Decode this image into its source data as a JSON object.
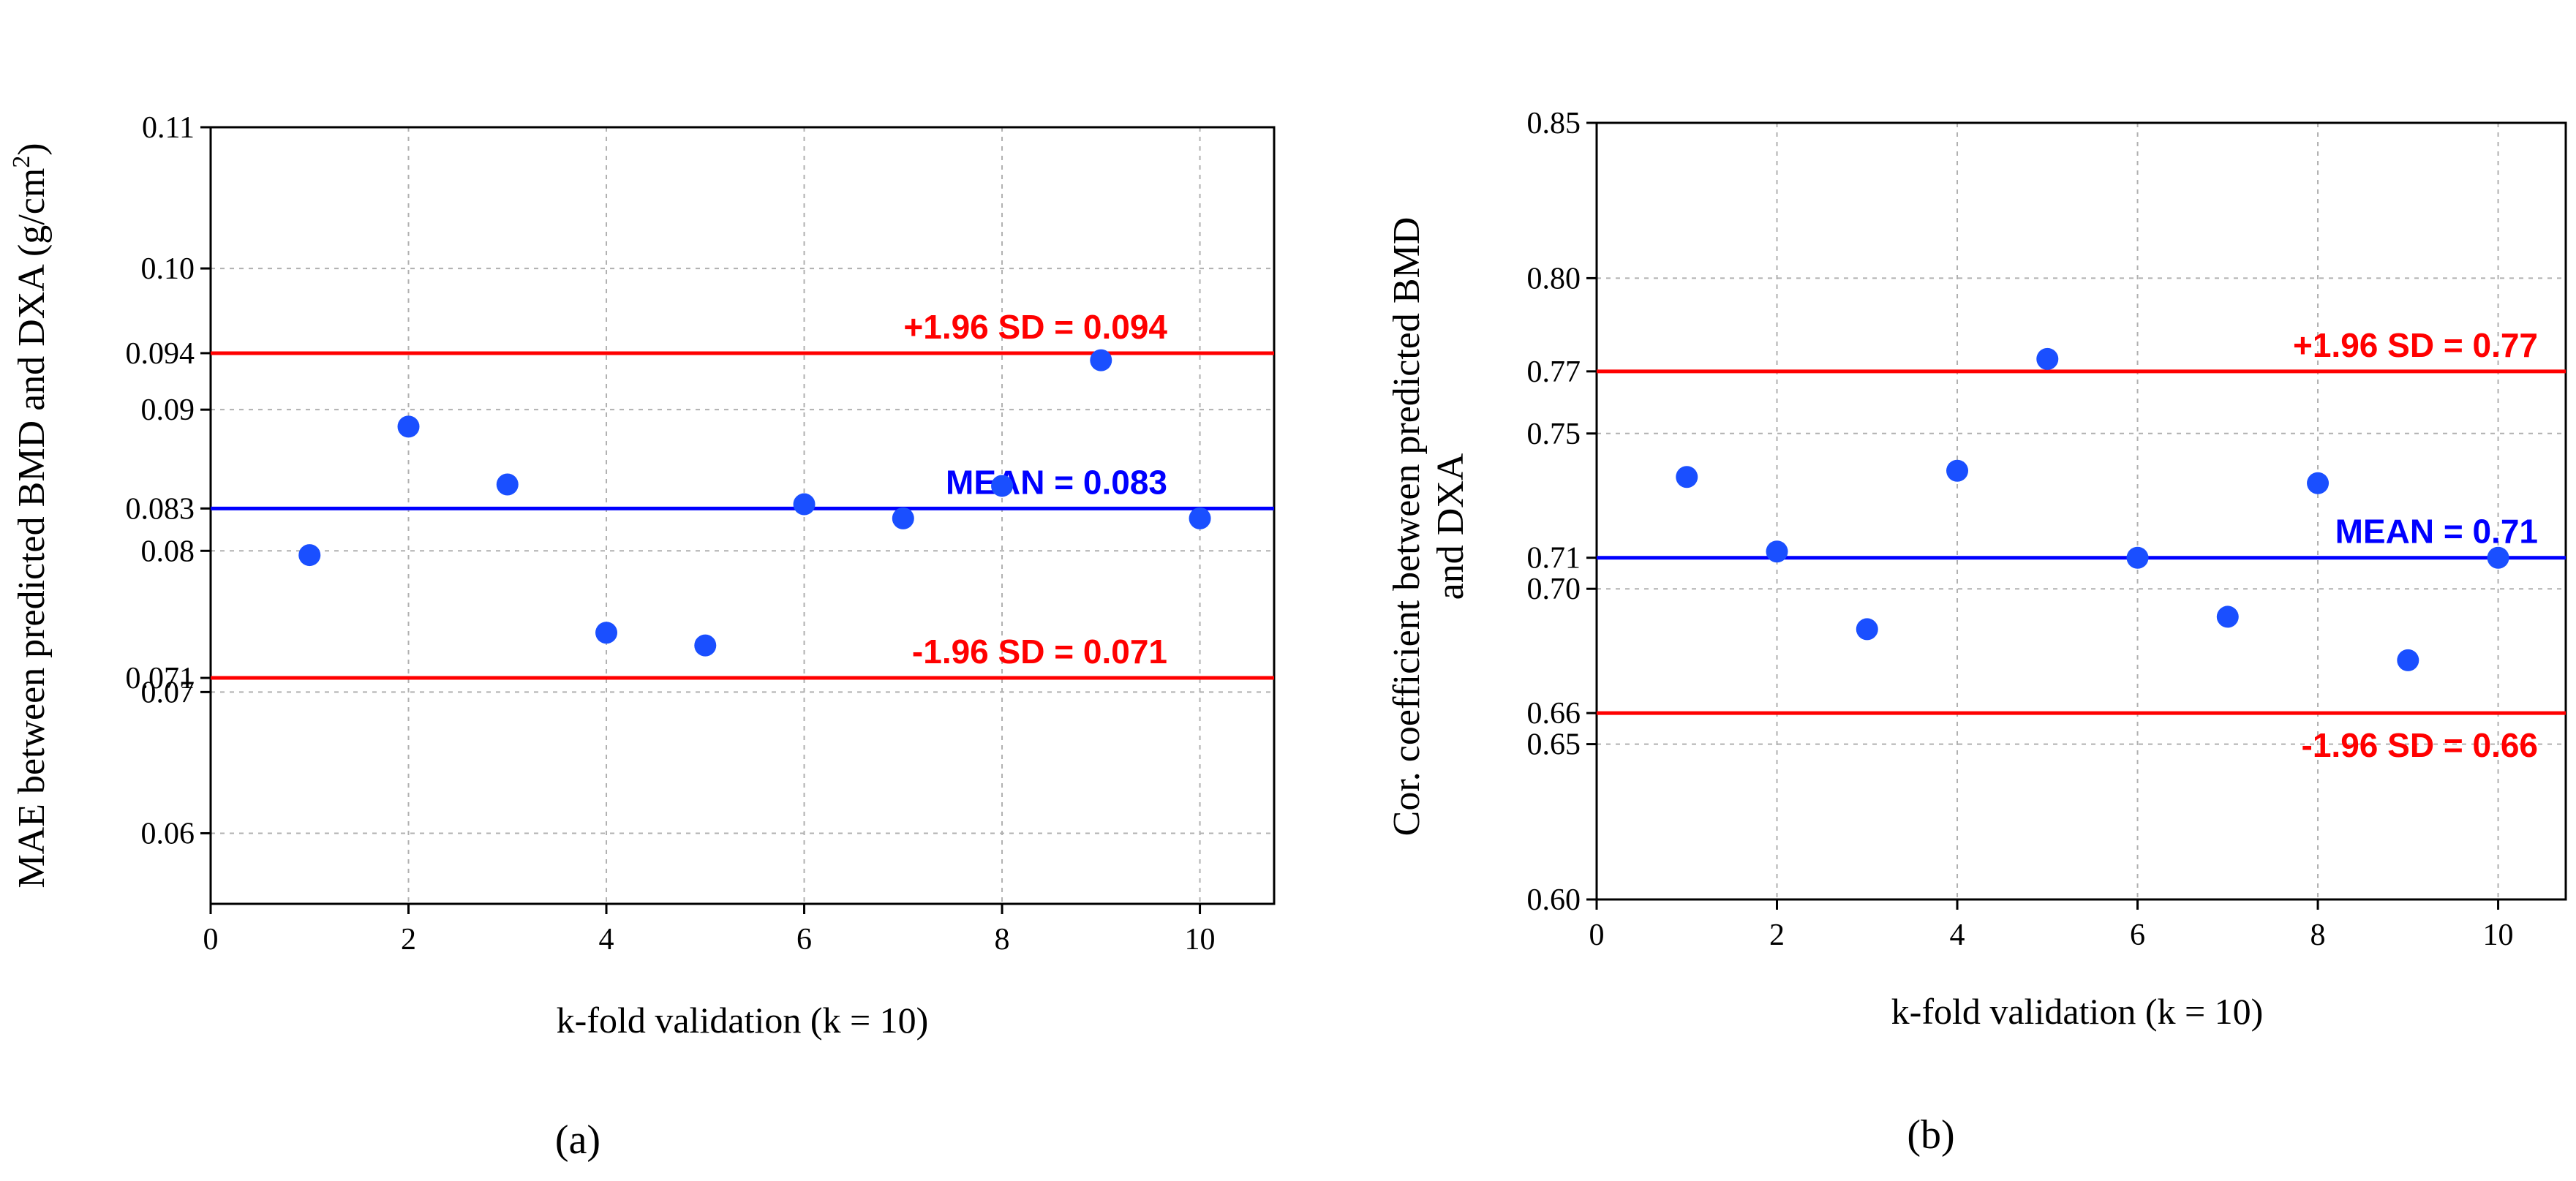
{
  "figure": {
    "panel_a_label": "(a)",
    "panel_b_label": "(b)"
  },
  "colors": {
    "limit_line": "#ff0000",
    "mean_line": "#0000ff",
    "point": "#1a4fff",
    "grid": "#b0b0b0",
    "axis": "#000000"
  },
  "chart_data": [
    {
      "type": "scatter",
      "panel": "a",
      "xlabel": "k-fold validation (k = 10)",
      "ylabel_main": "MAE between predicted BMD and DXA (g/cm",
      "ylabel_sup": "2",
      "ylabel_tail": ")",
      "xlim": [
        0,
        10.75
      ],
      "ylim": [
        0.055,
        0.11
      ],
      "xticks": [
        "0",
        "2",
        "4",
        "6",
        "8",
        "10"
      ],
      "xtick_values": [
        0,
        2,
        4,
        6,
        8,
        10
      ],
      "yticks": [
        "0.06",
        "0.07",
        "0.071",
        "0.08",
        "0.083",
        "0.09",
        "0.094",
        "0.10",
        "0.11"
      ],
      "ytick_values": [
        0.06,
        0.07,
        0.071,
        0.08,
        0.083,
        0.09,
        0.094,
        0.1,
        0.11
      ],
      "grid_values": [
        0.06,
        0.07,
        0.08,
        0.09,
        0.1
      ],
      "x": [
        1,
        2,
        3,
        4,
        5,
        6,
        7,
        8,
        9,
        10
      ],
      "y": [
        0.0797,
        0.0888,
        0.0847,
        0.0742,
        0.0733,
        0.0833,
        0.0823,
        0.0846,
        0.0935,
        0.0823
      ],
      "lines": [
        {
          "role": "upper",
          "value": 0.094,
          "label": "+1.96 SD = 0.094"
        },
        {
          "role": "mean",
          "value": 0.083,
          "label": "MEAN = 0.083"
        },
        {
          "role": "lower",
          "value": 0.071,
          "label": "-1.96 SD = 0.071"
        }
      ]
    },
    {
      "type": "scatter",
      "panel": "b",
      "xlabel": "k-fold validation (k = 10)",
      "ylabel_line1": "Cor. coefficient between predicted BMD",
      "ylabel_line2": "and DXA",
      "xlim": [
        0,
        10.75
      ],
      "ylim": [
        0.6,
        0.85
      ],
      "xticks": [
        "0",
        "2",
        "4",
        "6",
        "8",
        "10"
      ],
      "xtick_values": [
        0,
        2,
        4,
        6,
        8,
        10
      ],
      "yticks": [
        "0.60",
        "0.65",
        "0.66",
        "0.70",
        "0.71",
        "0.75",
        "0.77",
        "0.80",
        "0.85"
      ],
      "ytick_values": [
        0.6,
        0.65,
        0.66,
        0.7,
        0.71,
        0.75,
        0.77,
        0.8,
        0.85
      ],
      "grid_values": [
        0.65,
        0.7,
        0.75,
        0.8
      ],
      "x": [
        1,
        2,
        3,
        4,
        5,
        6,
        7,
        8,
        9,
        10
      ],
      "y": [
        0.736,
        0.712,
        0.687,
        0.738,
        0.774,
        0.71,
        0.691,
        0.734,
        0.677,
        0.71
      ],
      "lines": [
        {
          "role": "upper",
          "value": 0.77,
          "label": "+1.96 SD = 0.77"
        },
        {
          "role": "mean",
          "value": 0.71,
          "label": "MEAN = 0.71"
        },
        {
          "role": "lower",
          "value": 0.66,
          "label": "-1.96 SD = 0.66"
        }
      ]
    }
  ]
}
